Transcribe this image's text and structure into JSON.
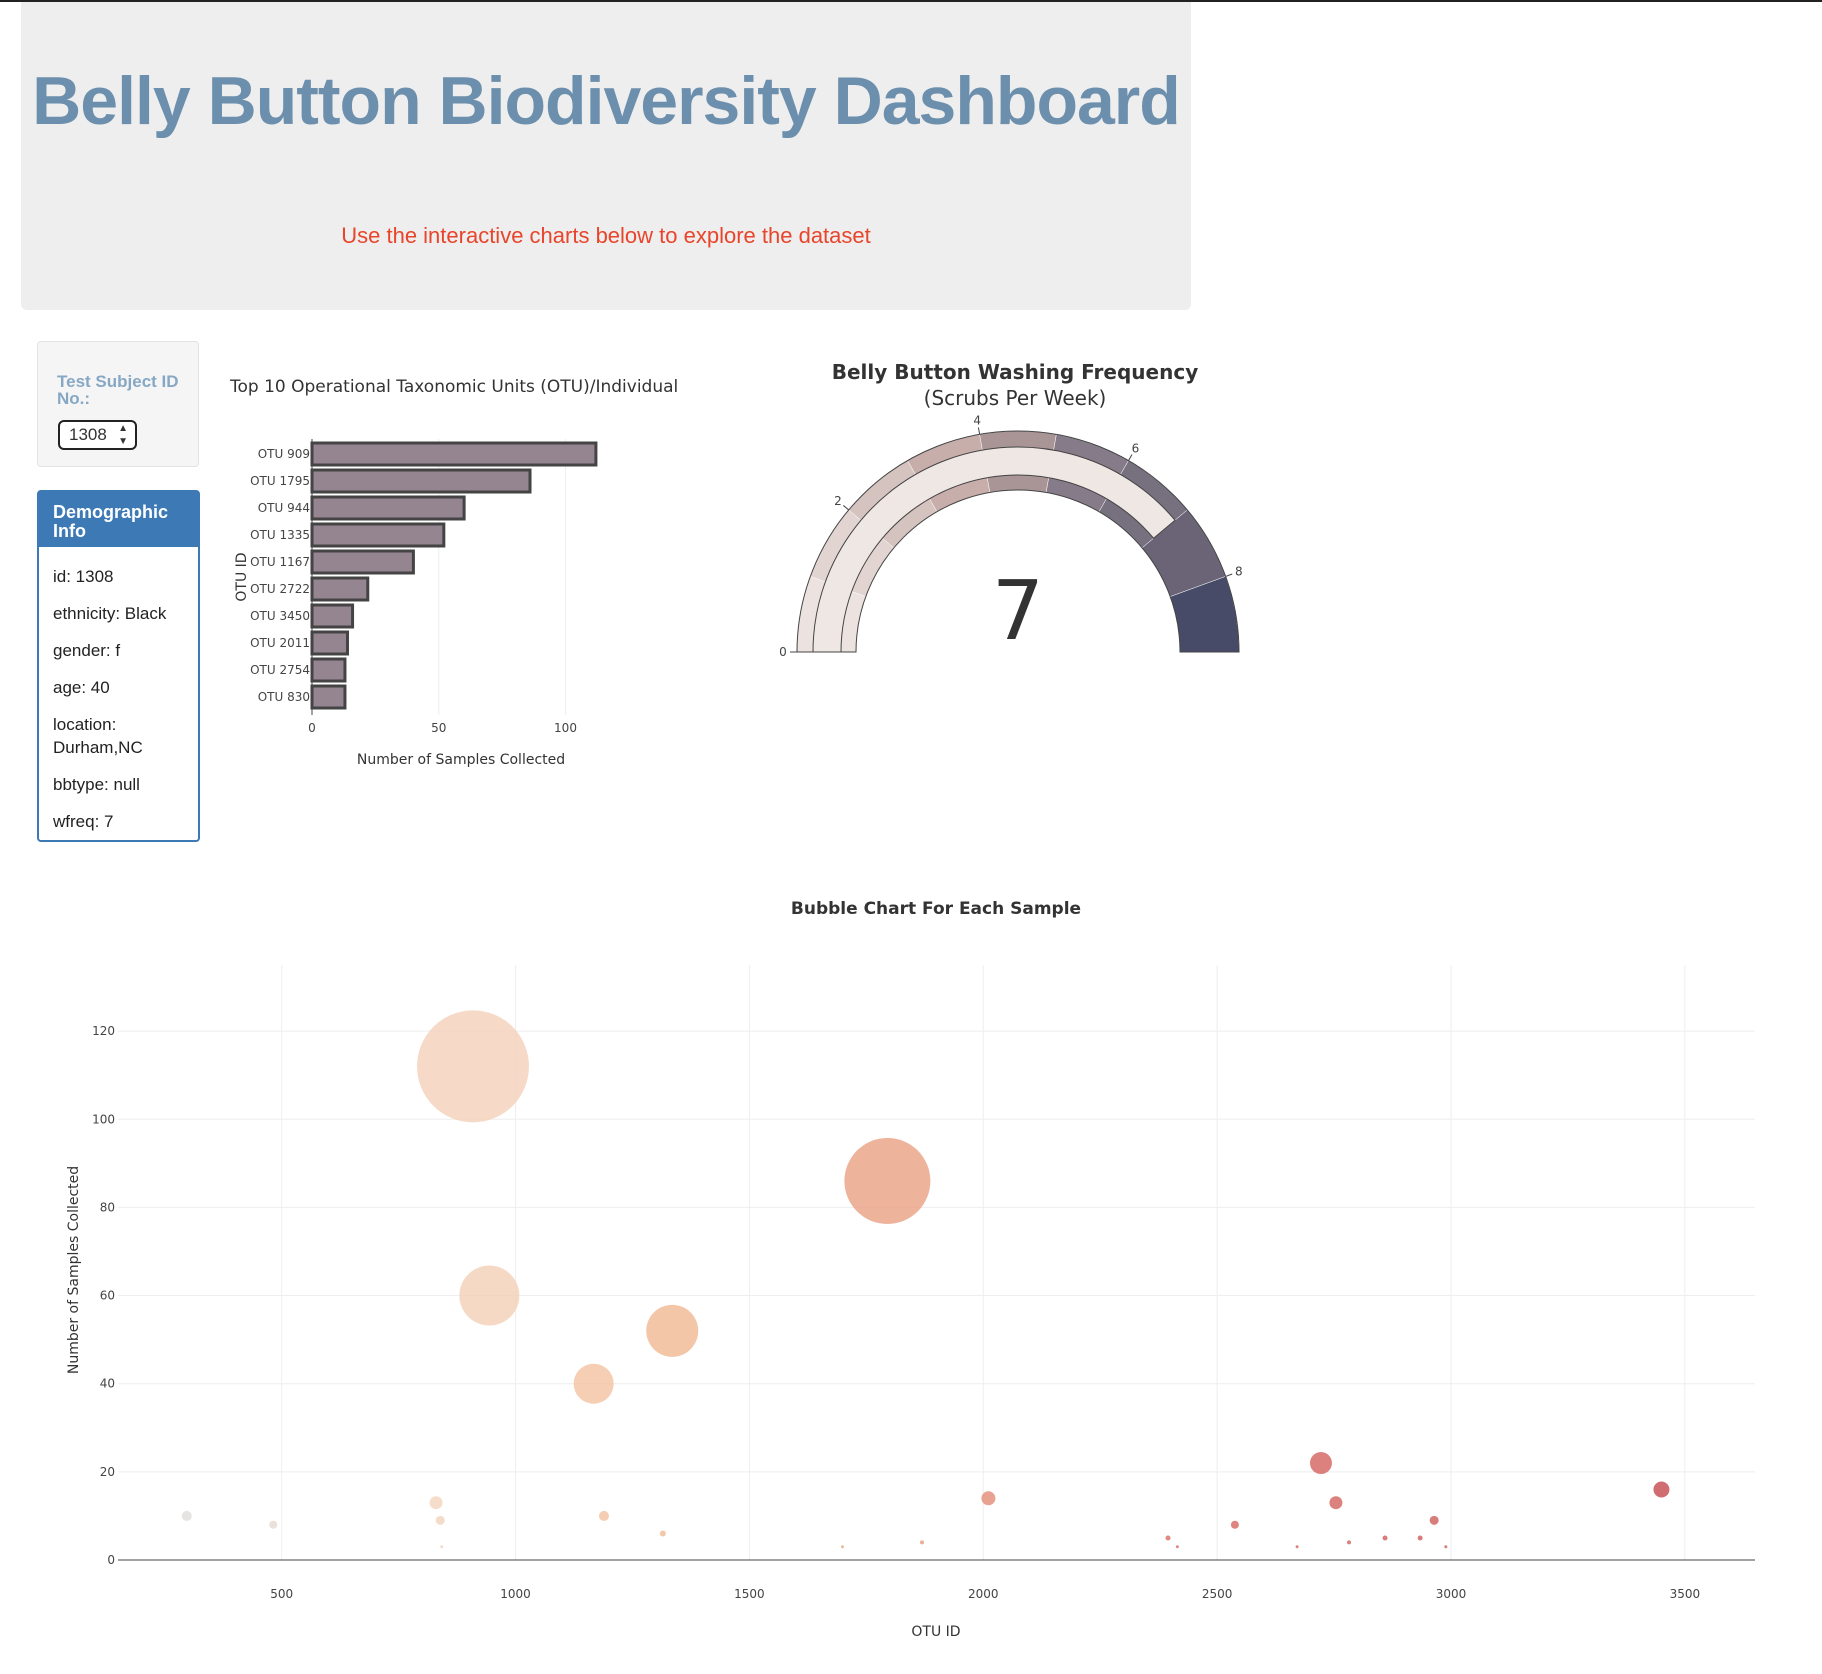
{
  "header": {
    "title": "Belly Button Biodiversity Dashboard",
    "subtitle": "Use the interactive charts below to explore the dataset"
  },
  "selector": {
    "label": "Test Subject ID No.:",
    "value": "1308"
  },
  "demographics": {
    "title": "Demographic Info",
    "items": [
      "id: 1308",
      "ethnicity: Black",
      "gender: f",
      "age: 40",
      "location: Durham,NC",
      "bbtype: null",
      "wfreq: 7"
    ]
  },
  "colors": {
    "title": "#6b8fad",
    "subtitle": "#e8452b",
    "panel": "#3d7ab5",
    "bar_fill": "#948590",
    "bar_stroke": "#444444"
  },
  "chart_data": [
    {
      "type": "bar",
      "orientation": "horizontal",
      "title": "Top 10 Operational Taxonomic Units (OTU)/Individual",
      "xlabel": "Number of Samples Collected",
      "ylabel": "OTU ID",
      "categories": [
        "OTU 909",
        "OTU 1795",
        "OTU 944",
        "OTU 1335",
        "OTU 1167",
        "OTU 2722",
        "OTU 3450",
        "OTU 2011",
        "OTU 2754",
        "OTU 830"
      ],
      "values": [
        112,
        86,
        60,
        52,
        40,
        22,
        16,
        14,
        13,
        13
      ],
      "xlim": [
        0,
        115
      ],
      "xticks": [
        0,
        50,
        100
      ],
      "grid": true
    },
    {
      "type": "gauge",
      "title": "Belly Button Washing Frequency",
      "subtitle": "(Scrubs Per Week)",
      "value": 7,
      "range": [
        0,
        9
      ],
      "ticks": [
        0,
        2,
        4,
        6,
        8
      ],
      "bands": [
        {
          "from": 0,
          "to": 1,
          "color": "#ece2df"
        },
        {
          "from": 1,
          "to": 2,
          "color": "#e2d5d1"
        },
        {
          "from": 2,
          "to": 3,
          "color": "#d5c3bf"
        },
        {
          "from": 3,
          "to": 4,
          "color": "#c7aeaa"
        },
        {
          "from": 4,
          "to": 5,
          "color": "#a99596"
        },
        {
          "from": 5,
          "to": 6,
          "color": "#867b89"
        },
        {
          "from": 6,
          "to": 7,
          "color": "#77707f"
        },
        {
          "from": 7,
          "to": 8,
          "color": "#6a6476"
        },
        {
          "from": 8,
          "to": 9,
          "color": "#474b67"
        }
      ]
    },
    {
      "type": "scatter",
      "title": "Bubble Chart For Each Sample",
      "xlabel": "OTU ID",
      "ylabel": "Number of Samples Collected",
      "xlim": [
        150,
        3650
      ],
      "ylim": [
        0,
        135
      ],
      "xticks": [
        500,
        1000,
        1500,
        2000,
        2500,
        3000,
        3500
      ],
      "yticks": [
        0,
        20,
        40,
        60,
        80,
        100,
        120
      ],
      "grid": true,
      "x": [
        909,
        1795,
        944,
        1335,
        1167,
        2722,
        3450,
        2011,
        2754,
        830,
        297,
        482,
        839,
        1189,
        1315,
        2538,
        2964,
        2395,
        2859,
        2934,
        2782,
        1869,
        2415,
        2671,
        2989,
        1699,
        842
      ],
      "y": [
        112,
        86,
        60,
        52,
        40,
        22,
        16,
        14,
        13,
        13,
        10,
        8,
        9,
        10,
        6,
        8,
        9,
        5,
        5,
        5,
        4,
        4,
        3,
        3,
        3,
        3,
        3
      ]
    }
  ]
}
